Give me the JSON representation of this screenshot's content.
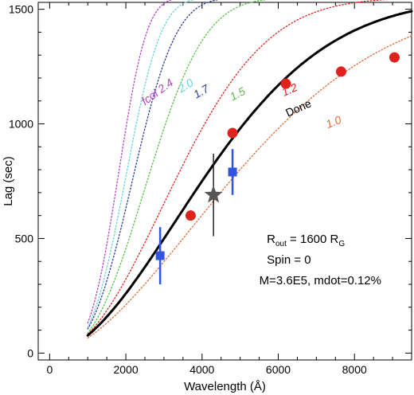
{
  "chart_data": {
    "type": "line",
    "xlabel": "Wavelength (Å)",
    "ylabel": "Lag (sec)",
    "xlim": [
      -300,
      9500
    ],
    "ylim": [
      -30,
      1530
    ],
    "xticks": [
      0,
      2000,
      4000,
      6000,
      8000
    ],
    "yticks": [
      0,
      500,
      1000,
      1500
    ],
    "x_minor_step": 500,
    "y_minor_step": 100,
    "grid": false,
    "curves": [
      {
        "label": "fcol 2.4",
        "color": "#b23fc6",
        "style": "dotted",
        "A": 1550,
        "B": 2000,
        "C": 3.5,
        "label_pos": [
          2500,
          1080
        ],
        "label_rot": -36
      },
      {
        "label": "2.0",
        "color": "#5fd7d0",
        "style": "dotted",
        "A": 1550,
        "B": 2250,
        "C": 3.2,
        "label_pos": [
          3450,
          1135
        ],
        "label_rot": -32
      },
      {
        "label": "1.7",
        "color": "#2a3a9a",
        "style": "dotted",
        "A": 1550,
        "B": 2500,
        "C": 2.9,
        "label_pos": [
          3850,
          1110
        ],
        "label_rot": -30
      },
      {
        "label": "1.5",
        "color": "#56c043",
        "style": "dotted",
        "A": 1550,
        "B": 3000,
        "C": 2.6,
        "label_pos": [
          4800,
          1100
        ],
        "label_rot": -28
      },
      {
        "label": "1.2",
        "color": "#e0221c",
        "style": "dotted",
        "A": 1550,
        "B": 4000,
        "C": 2.1,
        "label_pos": [
          6150,
          1120
        ],
        "label_rot": -24
      },
      {
        "label": "Done",
        "color": "#000000",
        "style": "solid",
        "A": 1550,
        "B": 5000,
        "C": 1.85,
        "label_pos": [
          6250,
          1030
        ],
        "label_rot": -24
      },
      {
        "label": "1.0",
        "color": "#e06a35",
        "style": "dotted",
        "A": 1550,
        "B": 6000,
        "C": 1.75,
        "label_pos": [
          7300,
          980
        ],
        "label_rot": -22
      }
    ],
    "series": [
      {
        "name": "red points",
        "marker": "circle",
        "color": "#e0221c",
        "points": [
          [
            3700,
            600
          ],
          [
            4800,
            960
          ],
          [
            6200,
            1175
          ],
          [
            7650,
            1228
          ],
          [
            9050,
            1290
          ]
        ]
      },
      {
        "name": "blue points",
        "marker": "square",
        "color": "#3355dd",
        "points": [
          [
            2900,
            425,
            125
          ],
          [
            4800,
            790,
            100
          ]
        ]
      },
      {
        "name": "star point",
        "marker": "star",
        "color": "#555555",
        "points": [
          [
            4300,
            690,
            180
          ]
        ]
      }
    ],
    "annotations": [
      {
        "text": "R",
        "sub": "out",
        "text2": " = 1600 R",
        "sub2": "G",
        "pos": [
          5700,
          480
        ]
      },
      {
        "text": "Spin = 0",
        "pos": [
          5700,
          390
        ]
      },
      {
        "text": "M=3.6E5, mdot=0.12%",
        "pos": [
          5500,
          300
        ]
      }
    ]
  }
}
